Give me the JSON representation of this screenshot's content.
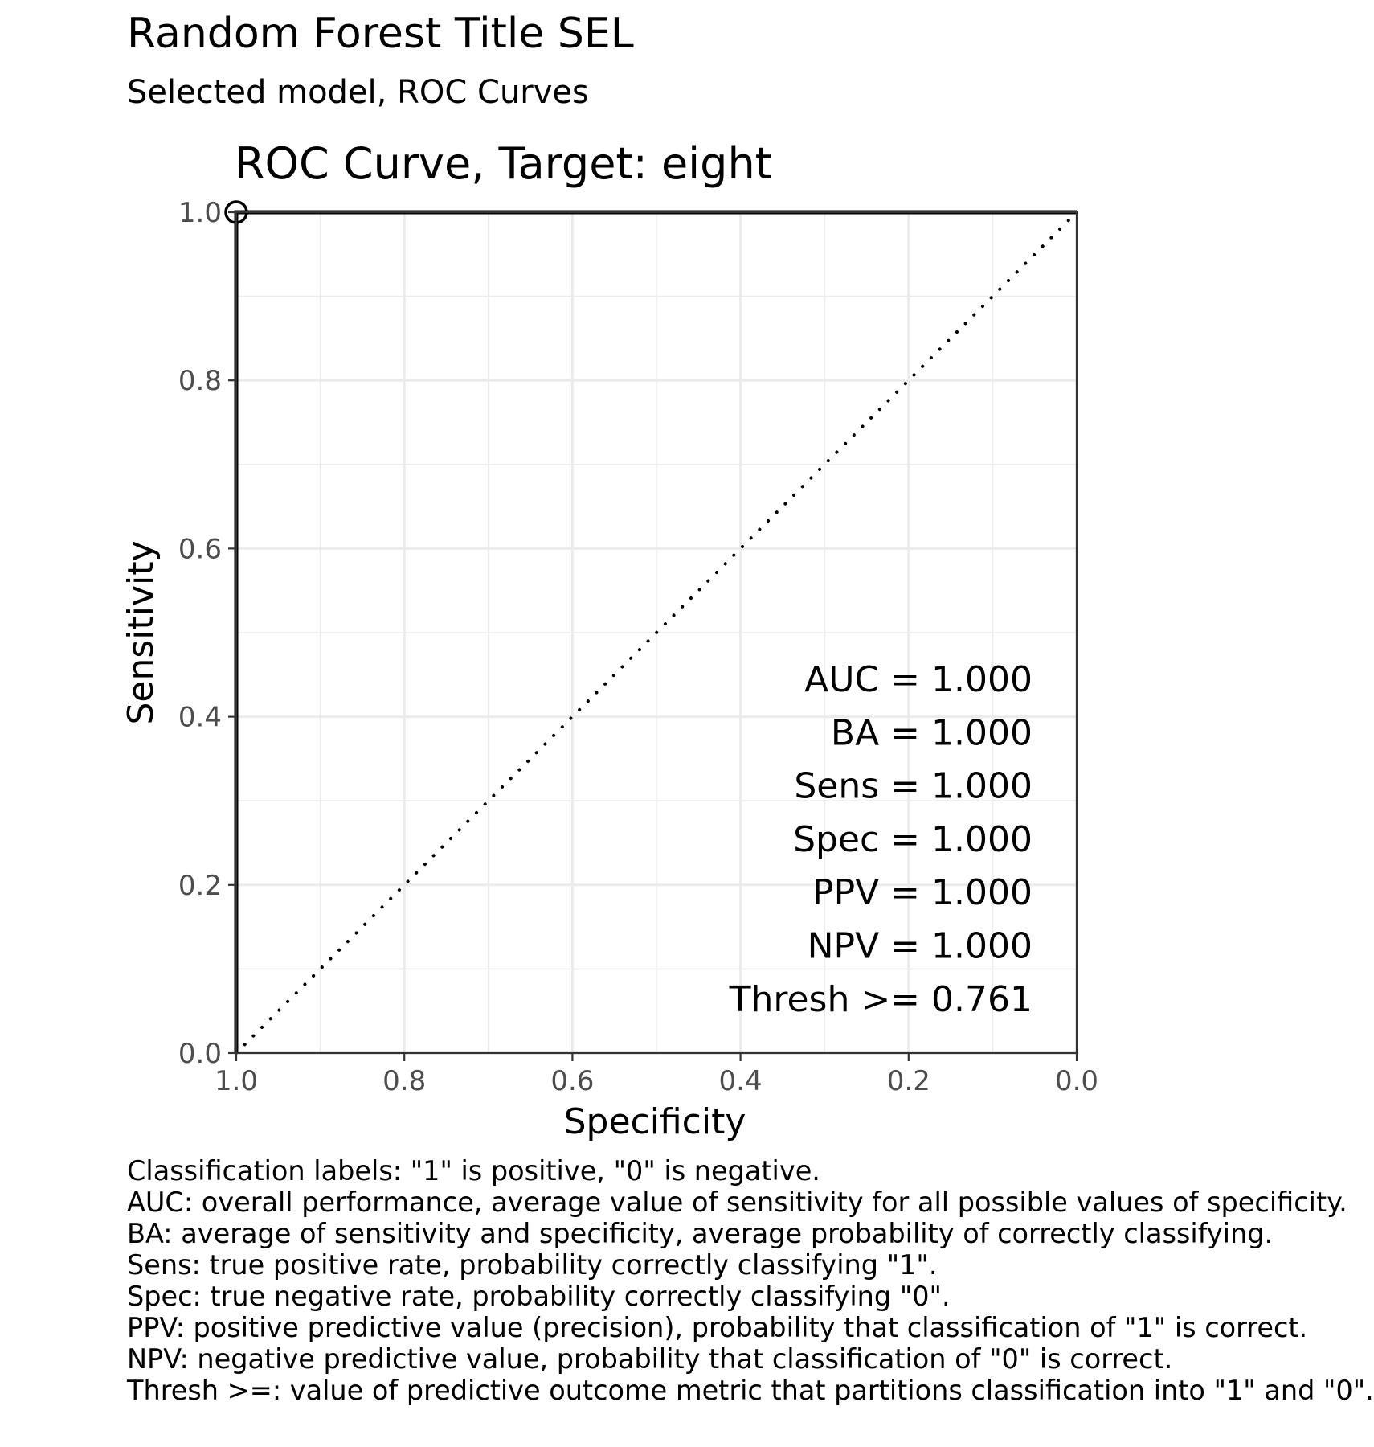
{
  "header": {
    "title": "Random Forest Title SEL",
    "subtitle": "Selected model, ROC Curves"
  },
  "chart_data": {
    "type": "line",
    "title": "ROC Curve, Target:  eight",
    "xlabel": "Specificity",
    "ylabel": "Sensitivity",
    "xlim": [
      1.0,
      0.0
    ],
    "ylim": [
      0.0,
      1.0
    ],
    "x_reversed": true,
    "grid": true,
    "x_ticks": [
      "1.0",
      "0.8",
      "0.6",
      "0.4",
      "0.2",
      "0.0"
    ],
    "y_ticks": [
      "0.0",
      "0.2",
      "0.4",
      "0.6",
      "0.8",
      "1.0"
    ],
    "series": [
      {
        "style": "solid",
        "color": "#000000",
        "specificity": [
          1.0,
          1.0,
          0.0
        ],
        "sensitivity": [
          0.0,
          1.0,
          1.0
        ]
      },
      {
        "style": "dotted",
        "color": "#000000",
        "specificity": [
          1.0,
          0.0
        ],
        "sensitivity": [
          0.0,
          1.0
        ]
      }
    ],
    "threshold_point": {
      "specificity": 1.0,
      "sensitivity": 1.0
    },
    "annotations": [
      "AUC = 1.000",
      "BA = 1.000",
      "Sens = 1.000",
      "Spec = 1.000",
      "PPV = 1.000",
      "NPV = 1.000",
      "Thresh >= 0.761"
    ]
  },
  "caption": [
    "Classification labels:  \"1\" is positive, \"0\" is negative.",
    "AUC: overall performance, average value of sensitivity for all possible values of specificity.",
    "BA: average of sensitivity and specificity, average probability of correctly classifying.",
    "Sens: true positive rate, probability correctly classifying \"1\".",
    "Spec: true negative rate, probability correctly classifying \"0\".",
    "PPV: positive predictive value (precision), probability that classification of \"1\" is correct.",
    "NPV: negative predictive value, probability that classification of \"0\" is correct.",
    "Thresh >=: value of predictive outcome metric that partitions classification into \"1\" and \"0\"."
  ]
}
